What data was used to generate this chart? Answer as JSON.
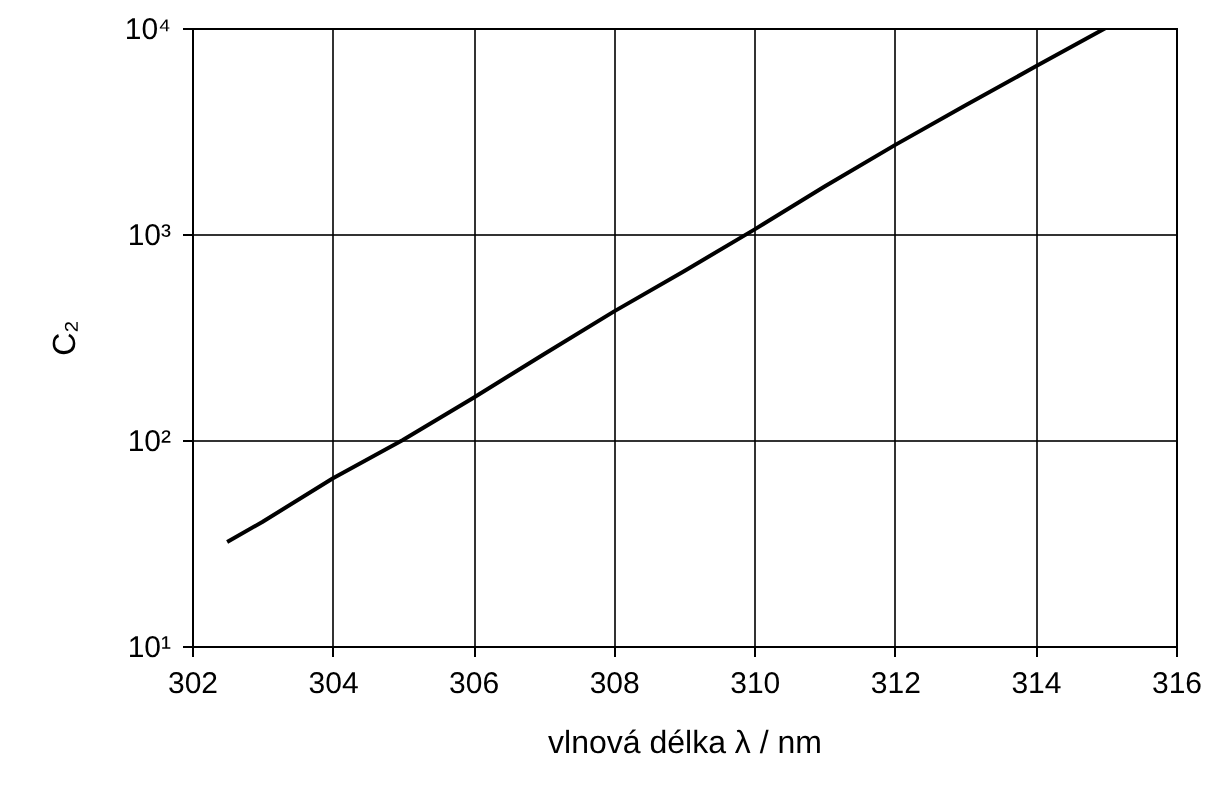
{
  "chart_data": {
    "type": "line",
    "xlabel": "vlnová délka λ / nm",
    "ylabel": "C₂",
    "x": [
      302.5,
      303,
      304,
      305,
      306,
      307,
      308,
      309,
      310,
      311,
      312,
      313,
      314,
      315
    ],
    "series": [
      {
        "color": "#000000",
        "values": [
          32,
          40,
          65,
          100,
          160,
          260,
          420,
          660,
          1050,
          1700,
          2700,
          4200,
          6500,
          10000
        ]
      }
    ],
    "xlim": [
      302,
      316
    ],
    "xticks": [
      302,
      304,
      306,
      308,
      310,
      312,
      314,
      316
    ],
    "ylim": [
      10,
      10000
    ],
    "yticks": [
      {
        "value": 10,
        "label": "10¹"
      },
      {
        "value": 100,
        "label": "10²"
      },
      {
        "value": 1000,
        "label": "10³"
      },
      {
        "value": 10000,
        "label": "10⁴"
      }
    ],
    "log": "y",
    "grid": true,
    "marker": "none",
    "line_style": "solid"
  }
}
